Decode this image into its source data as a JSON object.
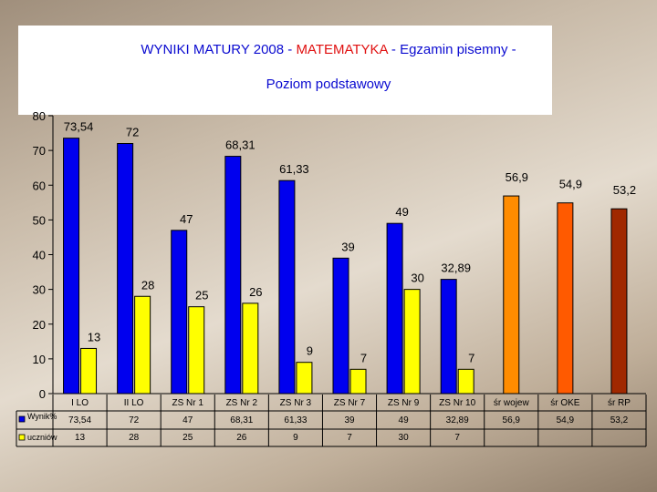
{
  "header": {
    "title_pre": "WYNIKI MATURY 2008 - ",
    "title_subject": "MATEMATYKA",
    "title_post": " - Egzamin pisemny -",
    "subtitle": "Poziom podstawowy"
  },
  "colors": {
    "blue": "#0000ee",
    "yellow": "#ffff00",
    "woj": "#ff8c00",
    "oke": "#ff5a00",
    "rp": "#a02800"
  },
  "chart_data": {
    "type": "bar",
    "ylim": [
      0,
      80
    ],
    "yticks": [
      0,
      10,
      20,
      30,
      40,
      50,
      60,
      70,
      80
    ],
    "categories": [
      "I LO",
      "II LO",
      "ZS Nr 1",
      "ZS Nr 2",
      "ZS Nr 3",
      "ZS Nr 7",
      "ZS Nr 9",
      "ZS Nr 10",
      "śr wojew",
      "śr OKE",
      "śr RP"
    ],
    "series": [
      {
        "name": "Wynik%",
        "values": [
          73.54,
          72,
          47,
          68.31,
          61.33,
          39,
          49,
          32.89,
          56.9,
          54.9,
          53.2
        ],
        "labels": [
          "73,54",
          "72",
          "47",
          "68,31",
          "61,33",
          "39",
          "49",
          "32,89",
          "56,9",
          "54,9",
          "53,2"
        ]
      },
      {
        "name": "uczniów",
        "values": [
          13,
          28,
          25,
          26,
          9,
          7,
          30,
          7,
          null,
          null,
          null
        ],
        "labels": [
          "13",
          "28",
          "25",
          "26",
          "9",
          "7",
          "30",
          "7",
          "",
          "",
          ""
        ]
      }
    ]
  }
}
